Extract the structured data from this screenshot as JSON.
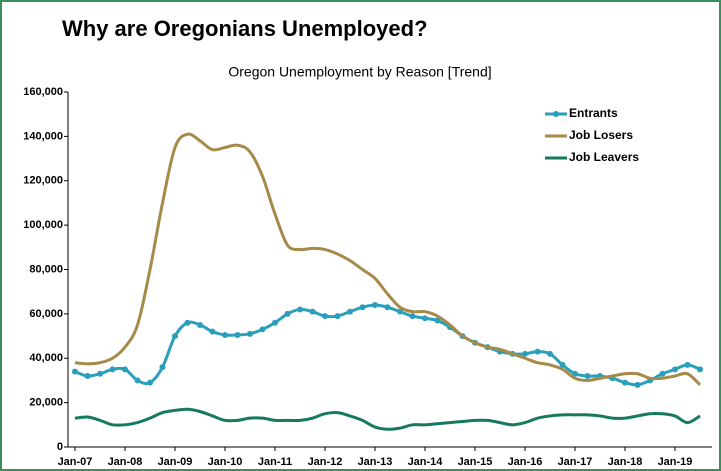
{
  "chart_data": {
    "type": "line",
    "heading": "Why are Oregonians Unemployed?",
    "title": "Oregon Unemployment by Reason [Trend]",
    "categories": [
      "Jan-07",
      null,
      null,
      null,
      "Jan-08",
      null,
      null,
      null,
      "Jan-09",
      null,
      null,
      null,
      "Jan-10",
      null,
      null,
      null,
      "Jan-11",
      null,
      null,
      null,
      "Jan-12",
      null,
      null,
      null,
      "Jan-13",
      null,
      null,
      null,
      "Jan-14",
      null,
      null,
      null,
      "Jan-15",
      null,
      null,
      null,
      "Jan-16",
      null,
      null,
      null,
      "Jan-17",
      null,
      null,
      null,
      "Jan-18",
      null,
      null,
      null,
      "Jan-19",
      null,
      null
    ],
    "series": [
      {
        "name": "Entrants",
        "color": "#2a9fbc",
        "markers": true,
        "values": [
          34000,
          32000,
          33000,
          35000,
          35000,
          30000,
          29000,
          36000,
          50000,
          56000,
          55000,
          52000,
          50500,
          50500,
          51000,
          53000,
          56000,
          60000,
          62000,
          61000,
          59000,
          59000,
          61000,
          63000,
          64000,
          63000,
          61000,
          59000,
          58000,
          57000,
          54000,
          50000,
          47000,
          45000,
          43000,
          42000,
          42000,
          43000,
          42000,
          37000,
          33000,
          32000,
          32000,
          31000,
          29000,
          28000,
          30000,
          33000,
          35000,
          37000,
          35000
        ]
      },
      {
        "name": "Job Losers",
        "color": "#a68a4a",
        "markers": false,
        "values": [
          38000,
          37500,
          38000,
          40000,
          45000,
          55000,
          80000,
          110000,
          135000,
          141000,
          138000,
          134000,
          135000,
          136000,
          133000,
          122000,
          105000,
          91000,
          89000,
          89500,
          89000,
          87000,
          84000,
          80000,
          76000,
          69000,
          63000,
          61000,
          61000,
          59000,
          55000,
          50000,
          47000,
          45000,
          44000,
          42000,
          40000,
          38000,
          37000,
          35000,
          31000,
          30000,
          31000,
          32000,
          33000,
          33000,
          31000,
          31000,
          32000,
          33000,
          28000
        ]
      },
      {
        "name": "Job Leavers",
        "color": "#157a5e",
        "markers": false,
        "values": [
          13000,
          13500,
          12000,
          10000,
          10000,
          11000,
          13000,
          15500,
          16500,
          17000,
          16000,
          14000,
          12000,
          12000,
          13000,
          13000,
          12000,
          12000,
          12000,
          13000,
          15000,
          15500,
          14000,
          12000,
          9000,
          8000,
          8500,
          10000,
          10000,
          10500,
          11000,
          11500,
          12000,
          12000,
          11000,
          10000,
          11000,
          13000,
          14000,
          14500,
          14500,
          14500,
          14000,
          13000,
          13000,
          14000,
          15000,
          15000,
          14000,
          11000,
          14000
        ]
      }
    ],
    "ylim": [
      0,
      160000
    ],
    "yticks": [
      0,
      {
        "value": 20000,
        "label": "20,000"
      },
      {
        "value": 40000,
        "label": "40,000"
      },
      {
        "value": 60000,
        "label": "60,000"
      },
      {
        "value": 80000,
        "label": "80,000"
      },
      {
        "value": 100000,
        "label": "100,000"
      },
      {
        "value": 120000,
        "label": "120,000"
      },
      {
        "value": 140000,
        "label": "140,000"
      },
      {
        "value": 160000,
        "label": "160,000"
      }
    ],
    "grid": false,
    "legend": "upper right"
  }
}
